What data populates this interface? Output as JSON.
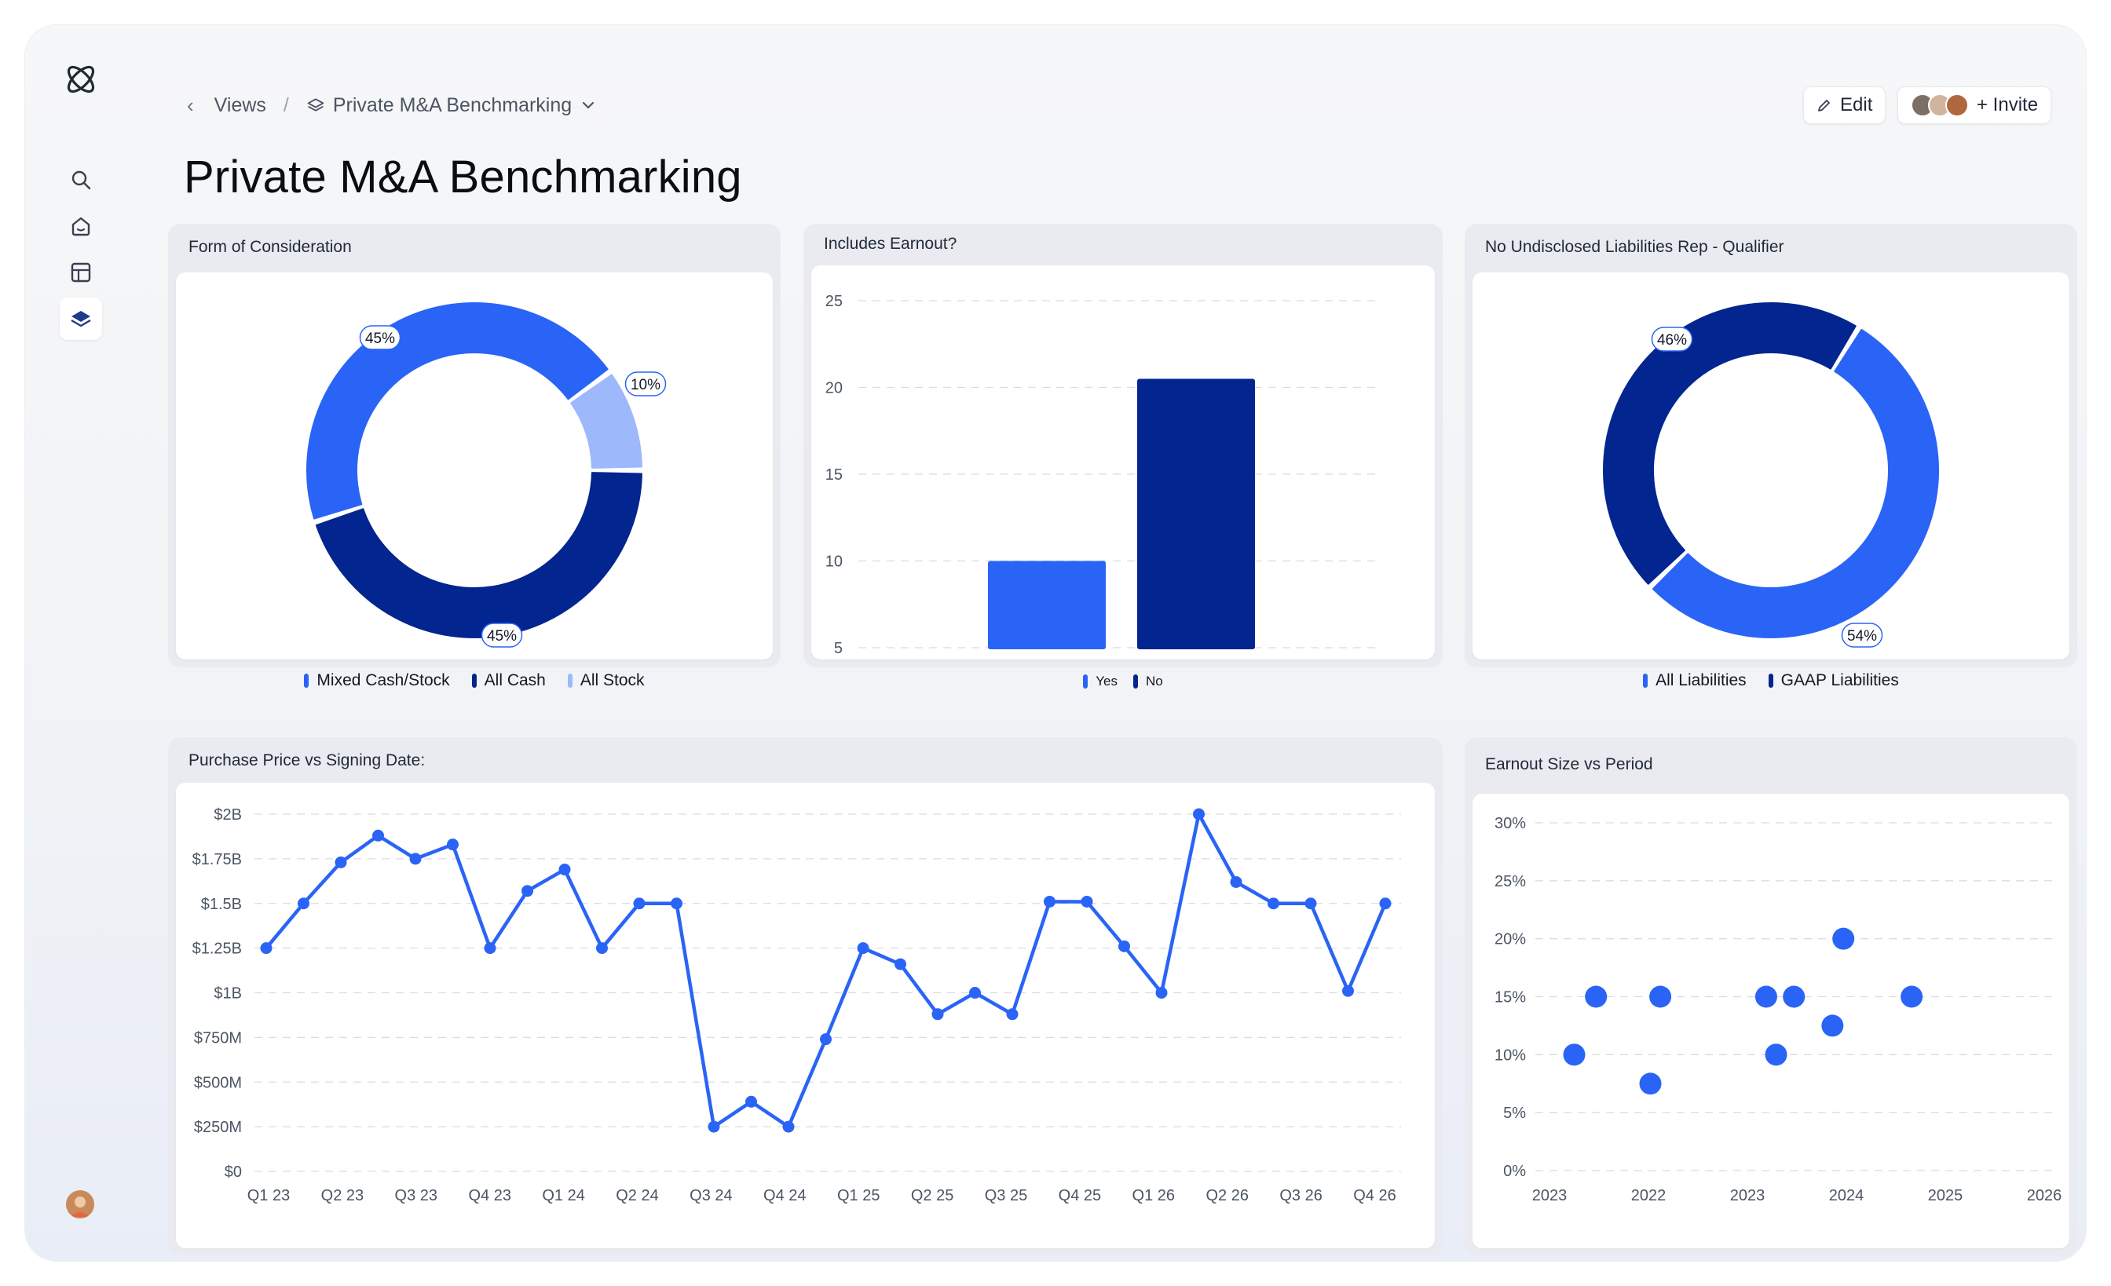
{
  "app": {
    "sidebar": {
      "items": [
        {
          "icon": "search-icon"
        },
        {
          "icon": "home-icon"
        },
        {
          "icon": "table-icon"
        },
        {
          "icon": "layers-icon",
          "active": true
        }
      ]
    },
    "header": {
      "breadcrumb_root": "Views",
      "breadcrumb_current": "Private M&A Benchmarking",
      "edit_label": "Edit",
      "invite_label": "+ Invite"
    },
    "page_title": "Private M&A Benchmarking",
    "colors": {
      "primary": "#2a64f6",
      "dark": "#03258f",
      "light": "#9db8fb",
      "grid": "#d9dce2"
    }
  },
  "chart_data": [
    {
      "id": "form-of-consideration",
      "type": "pie",
      "title": "Form of Consideration",
      "labels": [
        "Mixed Cash/Stock",
        "All Cash",
        "All Stock"
      ],
      "values": [
        45,
        45,
        10
      ],
      "value_labels": [
        "45%",
        "45%",
        "10%"
      ],
      "colors": [
        "#2a64f6",
        "#03258f",
        "#9db8fb"
      ],
      "legend": "bottom"
    },
    {
      "id": "includes-earnout",
      "type": "bar",
      "title": "Includes Earnout?",
      "categories": [
        "Yes",
        "No"
      ],
      "values": [
        10,
        20.5
      ],
      "colors": [
        "#2a64f6",
        "#03258f"
      ],
      "yticks": [
        "5",
        "10",
        "15",
        "20",
        "25"
      ],
      "ylim": [
        5,
        25
      ],
      "grid": true,
      "legend": "bottom"
    },
    {
      "id": "no-undisclosed-liabilities",
      "type": "pie",
      "title": "No Undisclosed Liabilities Rep - Qualifier",
      "labels": [
        "All Liabilities",
        "GAAP Liabilities"
      ],
      "values": [
        54,
        46
      ],
      "value_labels": [
        "54%",
        "46%"
      ],
      "colors": [
        "#2a64f6",
        "#03258f"
      ],
      "legend": "bottom"
    },
    {
      "id": "purchase-price-vs-signing-date",
      "type": "line",
      "title": "Purchase Price vs Signing Date:",
      "x_ticks": [
        "Q1 23",
        "Q2 23",
        "Q3 23",
        "Q4 23",
        "Q1 24",
        "Q2 24",
        "Q3 24",
        "Q4 24",
        "Q1 25",
        "Q2 25",
        "Q3 25",
        "Q4 25",
        "Q1 26",
        "Q2 26",
        "Q3 26",
        "Q4 26"
      ],
      "y_ticks": [
        "$0",
        "$250M",
        "$500M",
        "$750M",
        "$1B",
        "$1.25B",
        "$1.5B",
        "$1.75B",
        "$2B"
      ],
      "ylim": [
        0,
        2000
      ],
      "y_unit": "$M",
      "values": [
        1250,
        1500,
        1730,
        1880,
        1750,
        1830,
        1250,
        1570,
        1690,
        1250,
        1500,
        1500,
        250,
        390,
        250,
        740,
        1250,
        1160,
        880,
        1000,
        880,
        1510,
        1510,
        1260,
        1000,
        2000,
        1620,
        1500,
        1500,
        1010,
        1500
      ],
      "color": "#2a64f6",
      "grid": true
    },
    {
      "id": "earnout-size-vs-period",
      "type": "scatter",
      "title": "Earnout Size vs Period",
      "x_ticks": [
        "2023",
        "2022",
        "2023",
        "2024",
        "2025",
        "2026"
      ],
      "y_ticks": [
        "0%",
        "5%",
        "10%",
        "15%",
        "20%",
        "25%",
        "30%"
      ],
      "ylim": [
        0,
        30
      ],
      "points": [
        {
          "x": 0.25,
          "y": 10
        },
        {
          "x": 0.47,
          "y": 15
        },
        {
          "x": 1.12,
          "y": 15
        },
        {
          "x": 1.02,
          "y": 7.5
        },
        {
          "x": 2.19,
          "y": 15
        },
        {
          "x": 2.29,
          "y": 10
        },
        {
          "x": 2.47,
          "y": 15
        },
        {
          "x": 2.86,
          "y": 12.5
        },
        {
          "x": 2.97,
          "y": 20
        },
        {
          "x": 3.66,
          "y": 15
        }
      ],
      "color": "#2a64f6",
      "grid": true
    }
  ]
}
